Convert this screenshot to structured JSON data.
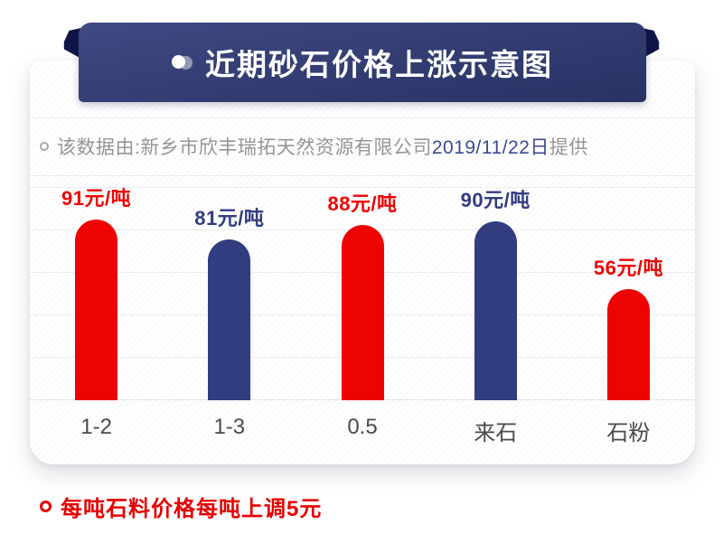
{
  "banner": {
    "title": "近期砂石价格上涨示意图",
    "color": "#333d72",
    "fold_color": "#0f1547"
  },
  "source_note": {
    "prefix": "该数据由:新乡市欣丰瑞拓天然资源有限公司",
    "date": "2019/11/22日",
    "suffix": "提供"
  },
  "footnote": "每吨石料价格每吨上调5元",
  "colors": {
    "red": "#ee0303",
    "blue": "#323d80",
    "footnote_red": "#e60000",
    "source_gray": "#959595",
    "source_date_blue": "#3c4a94",
    "category_gray": "#4a4a4a"
  },
  "chart_data": {
    "type": "bar",
    "title": "近期砂石价格上涨示意图",
    "categories": [
      "1-2",
      "1-3",
      "0.5",
      "来石",
      "石粉"
    ],
    "values": [
      91,
      81,
      88,
      90,
      56
    ],
    "data_labels": [
      "91元/吨",
      "81元/吨",
      "88元/吨",
      "90元/吨",
      "56元/吨"
    ],
    "bar_colors": [
      "#ee0303",
      "#323d80",
      "#ee0303",
      "#323d80",
      "#ee0303"
    ],
    "unit": "元/吨",
    "ylim": [
      0,
      100
    ],
    "grid": true,
    "legend": false,
    "source": "新乡市欣丰瑞拓天然资源有限公司",
    "date_provided": "2019/11/22"
  }
}
